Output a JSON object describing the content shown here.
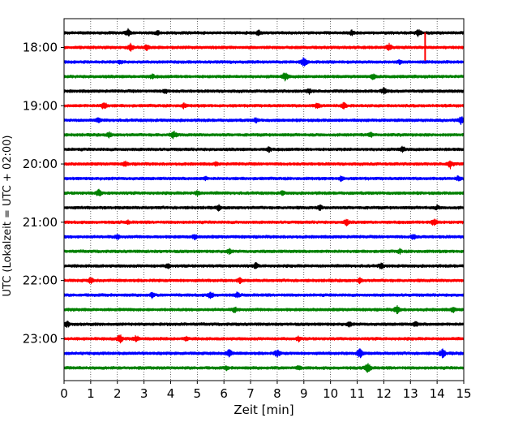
{
  "chart_data": {
    "type": "line",
    "title": "",
    "xlabel": "Zeit  [min]",
    "ylabel": "UTC (Lokalzeit = UTC + 02:00)",
    "xlim": [
      0,
      15
    ],
    "x_ticks": [
      "0",
      "1",
      "2",
      "3",
      "4",
      "5",
      "6",
      "7",
      "8",
      "9",
      "10",
      "11",
      "12",
      "13",
      "14",
      "15"
    ],
    "y_tick_labels": [
      "18:00",
      "19:00",
      "20:00",
      "21:00",
      "22:00",
      "23:00"
    ],
    "grid": "vertical dotted lines at every minute",
    "trace_interval_minutes": 15,
    "trace_color_cycle": [
      "#000000",
      "#ff0000",
      "#0000ff",
      "#008000"
    ],
    "series": [
      {
        "start": "17:45",
        "color": "#000000",
        "events": [
          {
            "t": 2.4,
            "a": 2.5
          },
          {
            "t": 3.5,
            "a": 2.0
          },
          {
            "t": 7.3,
            "a": 2.0
          },
          {
            "t": 10.8,
            "a": 2.0
          },
          {
            "t": 13.3,
            "a": 2.5
          }
        ]
      },
      {
        "start": "18:00",
        "color": "#ff0000",
        "events": [
          {
            "t": 2.5,
            "a": 2.5
          },
          {
            "t": 3.1,
            "a": 2.0
          },
          {
            "t": 12.2,
            "a": 2.5
          },
          {
            "t": 13.55,
            "a": 8.0,
            "spike": true
          }
        ]
      },
      {
        "start": "18:15",
        "color": "#0000ff",
        "events": [
          {
            "t": 9.0,
            "a": 3.0
          },
          {
            "t": 2.1,
            "a": 1.8
          },
          {
            "t": 12.6,
            "a": 1.8
          }
        ]
      },
      {
        "start": "18:30",
        "color": "#008000",
        "events": [
          {
            "t": 3.3,
            "a": 2.0
          },
          {
            "t": 8.3,
            "a": 3.0
          },
          {
            "t": 11.6,
            "a": 2.0
          }
        ]
      },
      {
        "start": "18:45",
        "color": "#000000",
        "events": [
          {
            "t": 3.8,
            "a": 2.0
          },
          {
            "t": 9.2,
            "a": 2.0
          },
          {
            "t": 12.0,
            "a": 2.5
          }
        ]
      },
      {
        "start": "19:00",
        "color": "#ff0000",
        "events": [
          {
            "t": 1.5,
            "a": 2.8
          },
          {
            "t": 4.5,
            "a": 2.0
          },
          {
            "t": 9.5,
            "a": 2.2
          },
          {
            "t": 10.5,
            "a": 2.2
          }
        ]
      },
      {
        "start": "19:15",
        "color": "#0000ff",
        "events": [
          {
            "t": 1.3,
            "a": 2.0
          },
          {
            "t": 7.2,
            "a": 2.0
          },
          {
            "t": 14.9,
            "a": 3.0
          }
        ]
      },
      {
        "start": "19:30",
        "color": "#008000",
        "events": [
          {
            "t": 1.7,
            "a": 2.0
          },
          {
            "t": 4.1,
            "a": 2.8
          },
          {
            "t": 11.5,
            "a": 2.0
          }
        ]
      },
      {
        "start": "19:45",
        "color": "#000000",
        "events": [
          {
            "t": 7.7,
            "a": 2.0
          },
          {
            "t": 12.7,
            "a": 2.2
          }
        ]
      },
      {
        "start": "20:00",
        "color": "#ff0000",
        "events": [
          {
            "t": 2.3,
            "a": 2.0
          },
          {
            "t": 14.5,
            "a": 2.8
          },
          {
            "t": 5.7,
            "a": 1.6
          }
        ]
      },
      {
        "start": "20:15",
        "color": "#0000ff",
        "events": [
          {
            "t": 10.4,
            "a": 2.0
          },
          {
            "t": 14.8,
            "a": 2.0
          },
          {
            "t": 5.3,
            "a": 1.6
          }
        ]
      },
      {
        "start": "20:30",
        "color": "#008000",
        "events": [
          {
            "t": 1.3,
            "a": 2.5
          },
          {
            "t": 5.0,
            "a": 2.0
          },
          {
            "t": 8.2,
            "a": 1.8
          }
        ]
      },
      {
        "start": "20:45",
        "color": "#000000",
        "events": [
          {
            "t": 5.8,
            "a": 2.0
          },
          {
            "t": 9.6,
            "a": 2.0
          },
          {
            "t": 14.0,
            "a": 1.8
          }
        ]
      },
      {
        "start": "21:00",
        "color": "#ff0000",
        "events": [
          {
            "t": 10.6,
            "a": 2.2
          },
          {
            "t": 13.9,
            "a": 2.8
          },
          {
            "t": 2.4,
            "a": 1.6
          }
        ]
      },
      {
        "start": "21:15",
        "color": "#0000ff",
        "events": [
          {
            "t": 2.0,
            "a": 2.0
          },
          {
            "t": 4.9,
            "a": 2.0
          },
          {
            "t": 13.1,
            "a": 2.2
          }
        ]
      },
      {
        "start": "21:30",
        "color": "#008000",
        "events": [
          {
            "t": 6.2,
            "a": 2.0
          },
          {
            "t": 12.6,
            "a": 1.8
          }
        ]
      },
      {
        "start": "21:45",
        "color": "#000000",
        "events": [
          {
            "t": 3.9,
            "a": 2.0
          },
          {
            "t": 7.2,
            "a": 2.2
          },
          {
            "t": 11.9,
            "a": 2.2
          }
        ]
      },
      {
        "start": "22:00",
        "color": "#ff0000",
        "events": [
          {
            "t": 1.0,
            "a": 2.2
          },
          {
            "t": 6.6,
            "a": 2.0
          },
          {
            "t": 11.1,
            "a": 2.0
          }
        ]
      },
      {
        "start": "22:15",
        "color": "#0000ff",
        "events": [
          {
            "t": 3.3,
            "a": 2.0
          },
          {
            "t": 5.5,
            "a": 2.5
          },
          {
            "t": 6.5,
            "a": 2.0
          }
        ]
      },
      {
        "start": "22:30",
        "color": "#008000",
        "events": [
          {
            "t": 6.4,
            "a": 2.2
          },
          {
            "t": 12.5,
            "a": 2.8
          },
          {
            "t": 14.6,
            "a": 2.0
          }
        ]
      },
      {
        "start": "22:45",
        "color": "#000000",
        "events": [
          {
            "t": 0.1,
            "a": 2.5
          },
          {
            "t": 10.7,
            "a": 2.0
          },
          {
            "t": 13.2,
            "a": 2.0
          }
        ]
      },
      {
        "start": "23:00",
        "color": "#ff0000",
        "events": [
          {
            "t": 2.1,
            "a": 2.8
          },
          {
            "t": 2.7,
            "a": 2.5
          },
          {
            "t": 4.6,
            "a": 2.0
          },
          {
            "t": 8.8,
            "a": 2.0
          }
        ]
      },
      {
        "start": "23:15",
        "color": "#0000ff",
        "events": [
          {
            "t": 6.2,
            "a": 2.8
          },
          {
            "t": 8.0,
            "a": 2.5
          },
          {
            "t": 11.1,
            "a": 3.0
          },
          {
            "t": 14.2,
            "a": 3.0
          }
        ]
      },
      {
        "start": "23:30",
        "color": "#008000",
        "events": [
          {
            "t": 11.4,
            "a": 3.2
          },
          {
            "t": 8.8,
            "a": 1.8
          },
          {
            "t": 6.1,
            "a": 1.6
          }
        ]
      }
    ]
  }
}
